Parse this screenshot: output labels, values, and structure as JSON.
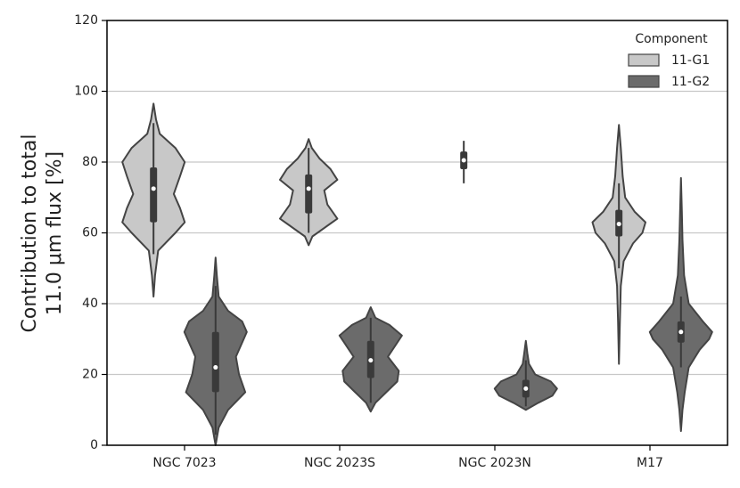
{
  "chart_data": {
    "type": "violin",
    "y_label": [
      "Contribution to total",
      "11.0 μm flux [%]"
    ],
    "categories": [
      "NGC 7023",
      "NGC 2023S",
      "NGC 2023N",
      "M17"
    ],
    "ylim": [
      0,
      120
    ],
    "yticks": [
      0,
      20,
      40,
      60,
      80,
      100,
      120
    ],
    "grid": true,
    "legend": {
      "title": "Component",
      "position": "upper right"
    },
    "series": [
      {
        "name": "11-G1",
        "color": "#c8c8c8",
        "violins": [
          {
            "q1": 63,
            "median": 72.5,
            "q3": 78.5,
            "whisker_low": 54,
            "whisker_high": 91,
            "profile": [
              [
                42,
                0
              ],
              [
                48,
                0.05
              ],
              [
                55,
                0.15
              ],
              [
                60,
                0.7
              ],
              [
                63,
                1.0
              ],
              [
                67,
                0.85
              ],
              [
                71,
                0.65
              ],
              [
                76,
                0.85
              ],
              [
                80,
                1.0
              ],
              [
                84,
                0.7
              ],
              [
                88,
                0.2
              ],
              [
                92,
                0.08
              ],
              [
                96.5,
                0
              ]
            ]
          },
          {
            "q1": 65.5,
            "median": 72.5,
            "q3": 76.5,
            "whisker_low": 60,
            "whisker_high": 84,
            "profile": [
              [
                56.5,
                0
              ],
              [
                59,
                0.12
              ],
              [
                62,
                0.6
              ],
              [
                64,
                0.92
              ],
              [
                68,
                0.6
              ],
              [
                72,
                0.5
              ],
              [
                75,
                0.92
              ],
              [
                78,
                0.7
              ],
              [
                81,
                0.35
              ],
              [
                84,
                0.1
              ],
              [
                86.5,
                0
              ]
            ]
          },
          {
            "q1": 78,
            "median": 80.5,
            "q3": 83,
            "whisker_low": 74,
            "whisker_high": 86
          },
          {
            "q1": 59,
            "median": 62.5,
            "q3": 66.5,
            "whisker_low": 50,
            "whisker_high": 74,
            "profile": [
              [
                23,
                0
              ],
              [
                35,
                0.03
              ],
              [
                45,
                0.06
              ],
              [
                52,
                0.15
              ],
              [
                57,
                0.45
              ],
              [
                60,
                0.75
              ],
              [
                63,
                0.85
              ],
              [
                66,
                0.5
              ],
              [
                70,
                0.2
              ],
              [
                76,
                0.12
              ],
              [
                84,
                0.06
              ],
              [
                90.5,
                0
              ]
            ]
          }
        ]
      },
      {
        "name": "11-G2",
        "color": "#6b6b6b",
        "violins": [
          {
            "q1": 15,
            "median": 22,
            "q3": 32,
            "whisker_low": 3,
            "whisker_high": 45,
            "profile": [
              [
                0,
                0
              ],
              [
                5,
                0.1
              ],
              [
                10,
                0.4
              ],
              [
                15,
                0.95
              ],
              [
                20,
                0.75
              ],
              [
                25,
                0.65
              ],
              [
                30,
                0.9
              ],
              [
                32,
                1.0
              ],
              [
                35,
                0.85
              ],
              [
                38,
                0.4
              ],
              [
                42,
                0.1
              ],
              [
                48,
                0.04
              ],
              [
                53,
                0
              ]
            ]
          },
          {
            "q1": 19,
            "median": 24,
            "q3": 29.5,
            "whisker_low": 12,
            "whisker_high": 36,
            "profile": [
              [
                9.5,
                0
              ],
              [
                12,
                0.15
              ],
              [
                15,
                0.5
              ],
              [
                18,
                0.85
              ],
              [
                21,
                0.9
              ],
              [
                25,
                0.55
              ],
              [
                29,
                0.85
              ],
              [
                31,
                1.0
              ],
              [
                34,
                0.6
              ],
              [
                36,
                0.15
              ],
              [
                39,
                0
              ]
            ]
          },
          {
            "q1": 13.5,
            "median": 16,
            "q3": 18.5,
            "whisker_low": 11,
            "whisker_high": 24,
            "profile": [
              [
                10,
                0
              ],
              [
                12,
                0.4
              ],
              [
                14,
                0.85
              ],
              [
                16,
                1.0
              ],
              [
                18,
                0.8
              ],
              [
                20,
                0.3
              ],
              [
                23,
                0.1
              ],
              [
                26,
                0.05
              ],
              [
                29.5,
                0
              ]
            ]
          },
          {
            "q1": 29,
            "median": 32,
            "q3": 35,
            "whisker_low": 22,
            "whisker_high": 42,
            "profile": [
              [
                4,
                0
              ],
              [
                10,
                0.05
              ],
              [
                15,
                0.12
              ],
              [
                22,
                0.25
              ],
              [
                27,
                0.6
              ],
              [
                30,
                0.9
              ],
              [
                32,
                1.0
              ],
              [
                35,
                0.7
              ],
              [
                40,
                0.25
              ],
              [
                48,
                0.1
              ],
              [
                58,
                0.05
              ],
              [
                66,
                0.03
              ],
              [
                75.5,
                0
              ]
            ]
          }
        ]
      }
    ]
  }
}
